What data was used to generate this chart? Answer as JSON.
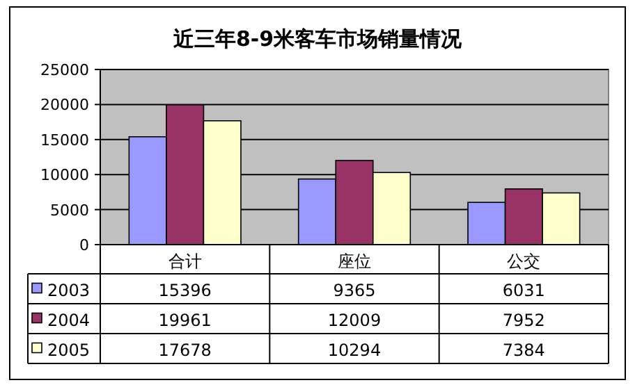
{
  "chart_data": {
    "type": "bar",
    "title": "近三年8-9米客车市场销量情况",
    "categories": [
      "合计",
      "座位",
      "公交"
    ],
    "series": [
      {
        "name": "2003",
        "color": "#9999ff",
        "values": [
          15396,
          9365,
          6031
        ]
      },
      {
        "name": "2004",
        "color": "#993366",
        "values": [
          19961,
          12009,
          7952
        ]
      },
      {
        "name": "2005",
        "color": "#ffffcc",
        "values": [
          17678,
          10294,
          7384
        ]
      }
    ],
    "ylim": [
      0,
      25000
    ],
    "yticks": [
      0,
      5000,
      10000,
      15000,
      20000,
      25000
    ],
    "grid": "y",
    "legend": "bottom",
    "data_labels": true
  }
}
